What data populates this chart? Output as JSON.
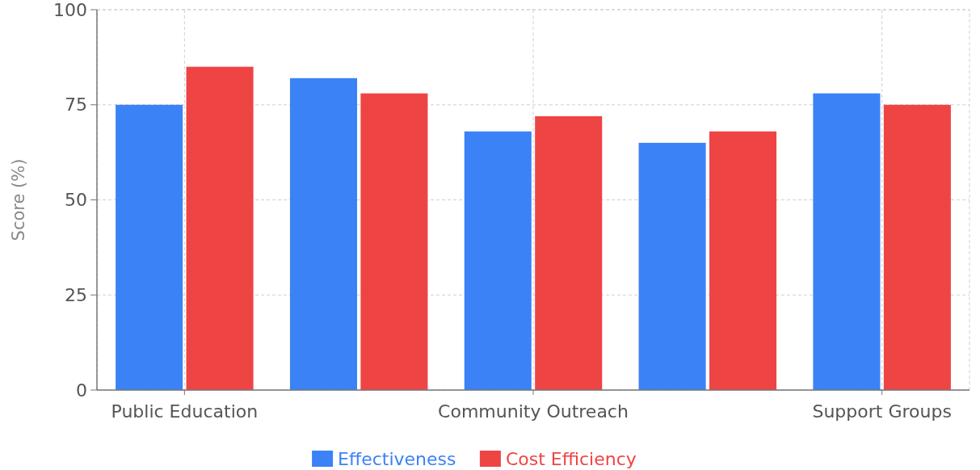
{
  "chart_data": {
    "type": "bar",
    "ylabel": "Score (%)",
    "categories": [
      "Public Education",
      null,
      "Community Outreach",
      null,
      "Support Groups"
    ],
    "series": [
      {
        "name": "Effectiveness",
        "color": "#3b82f6",
        "values": [
          75,
          82,
          68,
          65,
          78
        ]
      },
      {
        "name": "Cost Efficiency",
        "color": "#ef4444",
        "values": [
          85,
          78,
          72,
          68,
          75
        ]
      }
    ],
    "ylim": [
      0,
      100
    ],
    "yticks": [
      0,
      25,
      50,
      75,
      100
    ],
    "grid": true,
    "legend": "bottom"
  }
}
